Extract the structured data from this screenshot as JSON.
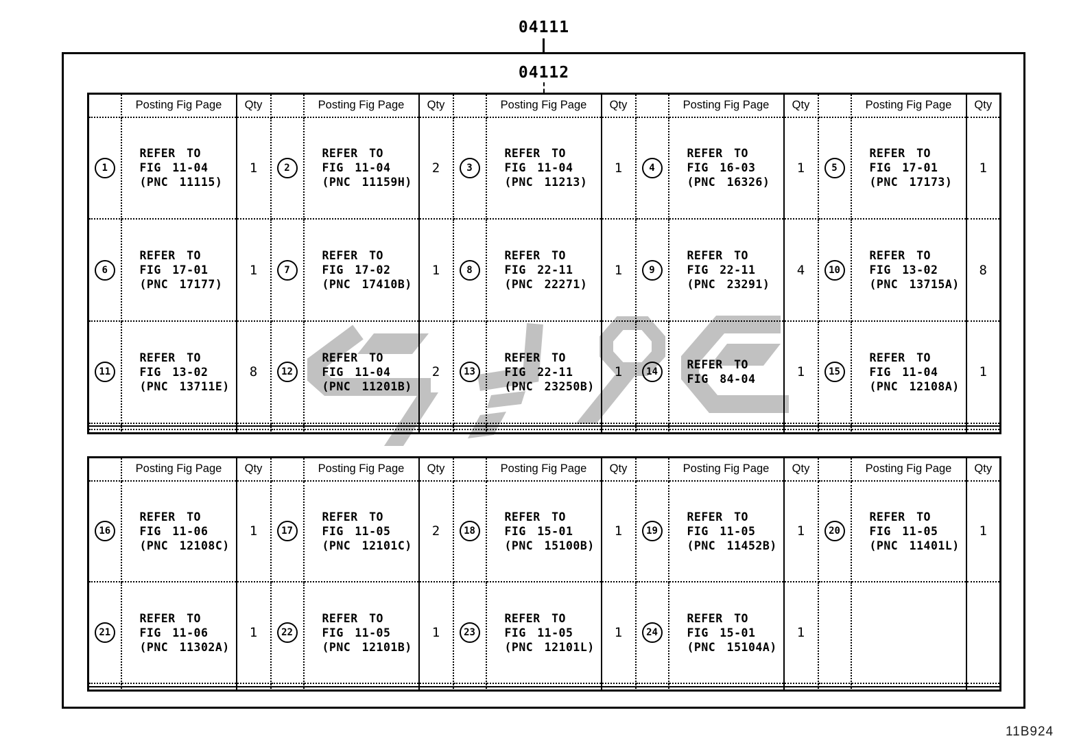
{
  "labels": {
    "top_code": "04111",
    "sub_code": "04112",
    "sheet_code": "11B924"
  },
  "colors": {
    "line": "#000000",
    "background": "#ffffff",
    "watermark_gray": "#c1c1c1"
  },
  "watermark": {
    "name": "supplier-logo-watermark"
  },
  "tables": [
    {
      "name": "upper",
      "column_headers": {
        "posting": "Posting Fig Page",
        "qty": "Qty"
      },
      "data_rows": [
        [
          {
            "num": "1",
            "ref": [
              "REFER TO",
              "FIG 11-04",
              "(PNC 11115)"
            ],
            "qty": "1"
          },
          {
            "num": "2",
            "ref": [
              "REFER TO",
              "FIG 11-04",
              "(PNC 11159H)"
            ],
            "qty": "2"
          },
          {
            "num": "3",
            "ref": [
              "REFER TO",
              "FIG 11-04",
              "(PNC 11213)"
            ],
            "qty": "1"
          },
          {
            "num": "4",
            "ref": [
              "REFER TO",
              "FIG 16-03",
              "(PNC 16326)"
            ],
            "qty": "1"
          },
          {
            "num": "5",
            "ref": [
              "REFER TO",
              "FIG 17-01",
              "(PNC 17173)"
            ],
            "qty": "1"
          }
        ],
        [
          {
            "num": "6",
            "ref": [
              "REFER TO",
              "FIG 17-01",
              "(PNC 17177)"
            ],
            "qty": "1"
          },
          {
            "num": "7",
            "ref": [
              "REFER TO",
              "FIG 17-02",
              "(PNC 17410B)"
            ],
            "qty": "1"
          },
          {
            "num": "8",
            "ref": [
              "REFER TO",
              "FIG 22-11",
              "(PNC 22271)"
            ],
            "qty": "1"
          },
          {
            "num": "9",
            "ref": [
              "REFER TO",
              "FIG 22-11",
              "(PNC 23291)"
            ],
            "qty": "4"
          },
          {
            "num": "10",
            "ref": [
              "REFER TO",
              "FIG 13-02",
              "(PNC 13715A)"
            ],
            "qty": "8"
          }
        ],
        [
          {
            "num": "11",
            "ref": [
              "REFER TO",
              "FIG 13-02",
              "(PNC 13711E)"
            ],
            "qty": "8"
          },
          {
            "num": "12",
            "ref": [
              "REFER TO",
              "FIG 11-04",
              "(PNC 11201B)"
            ],
            "qty": "2"
          },
          {
            "num": "13",
            "ref": [
              "REFER TO",
              "FIG 22-11",
              "(PNC 23250B)"
            ],
            "qty": "1"
          },
          {
            "num": "14",
            "ref": [
              "REFER TO",
              "FIG 84-04"
            ],
            "qty": "1"
          },
          {
            "num": "15",
            "ref": [
              "REFER TO",
              "FIG 11-04",
              "(PNC 12108A)"
            ],
            "qty": "1"
          }
        ]
      ],
      "empty_rows": 3
    },
    {
      "name": "lower",
      "column_headers": {
        "posting": "Posting Fig Page",
        "qty": "Qty"
      },
      "data_rows": [
        [
          {
            "num": "16",
            "ref": [
              "REFER TO",
              "FIG 11-06",
              "(PNC 12108C)"
            ],
            "qty": "1"
          },
          {
            "num": "17",
            "ref": [
              "REFER TO",
              "FIG 11-05",
              "(PNC 12101C)"
            ],
            "qty": "2"
          },
          {
            "num": "18",
            "ref": [
              "REFER TO",
              "FIG 15-01",
              "(PNC 15100B)"
            ],
            "qty": "1"
          },
          {
            "num": "19",
            "ref": [
              "REFER TO",
              "FIG 11-05",
              "(PNC 11452B)"
            ],
            "qty": "1"
          },
          {
            "num": "20",
            "ref": [
              "REFER TO",
              "FIG 11-05",
              "(PNC 11401L)"
            ],
            "qty": "1"
          }
        ],
        [
          {
            "num": "21",
            "ref": [
              "REFER TO",
              "FIG 11-06",
              "(PNC 11302A)"
            ],
            "qty": "1"
          },
          {
            "num": "22",
            "ref": [
              "REFER TO",
              "FIG 11-05",
              "(PNC 12101B)"
            ],
            "qty": "1"
          },
          {
            "num": "23",
            "ref": [
              "REFER TO",
              "FIG 11-05",
              "(PNC 12101L)"
            ],
            "qty": "1"
          },
          {
            "num": "24",
            "ref": [
              "REFER TO",
              "FIG 15-01",
              "(PNC 15104A)"
            ],
            "qty": "1"
          },
          null
        ]
      ],
      "empty_rows": 2
    }
  ]
}
